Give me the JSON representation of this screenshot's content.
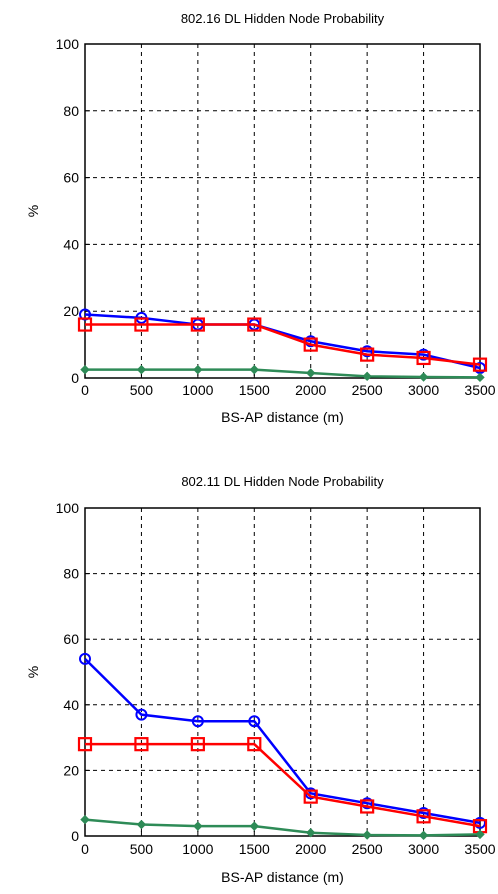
{
  "chart_data": [
    {
      "type": "line",
      "title": "802.16 DL Hidden Node Probability",
      "xlabel": "BS-AP distance (m)",
      "ylabel": "%",
      "x": [
        0,
        500,
        1000,
        1500,
        2000,
        2500,
        3000,
        3500
      ],
      "xticks": [
        "0",
        "500",
        "1000",
        "1500",
        "2000",
        "2500",
        "3000",
        "3500"
      ],
      "yticks": [
        "0",
        "20",
        "40",
        "60",
        "80",
        "100"
      ],
      "xlim": [
        0,
        3500
      ],
      "ylim": [
        0,
        100
      ],
      "grid": true,
      "series": [
        {
          "color": "#0000ff",
          "marker": "circle",
          "values": [
            19,
            18,
            16,
            16,
            11,
            8,
            7,
            3
          ]
        },
        {
          "color": "#ff0000",
          "marker": "square",
          "values": [
            16,
            16,
            16,
            16,
            10,
            7,
            6,
            4
          ]
        },
        {
          "color": "#2e8b57",
          "marker": "diamond",
          "values": [
            2.5,
            2.5,
            2.5,
            2.5,
            1.5,
            0.5,
            0.3,
            0.2
          ]
        }
      ]
    },
    {
      "type": "line",
      "title": "802.11 DL Hidden Node Probability",
      "xlabel": "BS-AP distance (m)",
      "ylabel": "%",
      "x": [
        0,
        500,
        1000,
        1500,
        2000,
        2500,
        3000,
        3500
      ],
      "xticks": [
        "0",
        "500",
        "1000",
        "1500",
        "2000",
        "2500",
        "3000",
        "3500"
      ],
      "yticks": [
        "0",
        "20",
        "40",
        "60",
        "80",
        "100"
      ],
      "xlim": [
        0,
        3500
      ],
      "ylim": [
        0,
        100
      ],
      "grid": true,
      "series": [
        {
          "color": "#0000ff",
          "marker": "circle",
          "values": [
            54,
            37,
            35,
            35,
            13,
            10,
            7,
            4
          ]
        },
        {
          "color": "#ff0000",
          "marker": "square",
          "values": [
            28,
            28,
            28,
            28,
            12,
            9,
            6,
            3
          ]
        },
        {
          "color": "#2e8b57",
          "marker": "diamond",
          "values": [
            5,
            3.5,
            3,
            3,
            1,
            0.3,
            0.2,
            0.5
          ]
        }
      ]
    }
  ]
}
